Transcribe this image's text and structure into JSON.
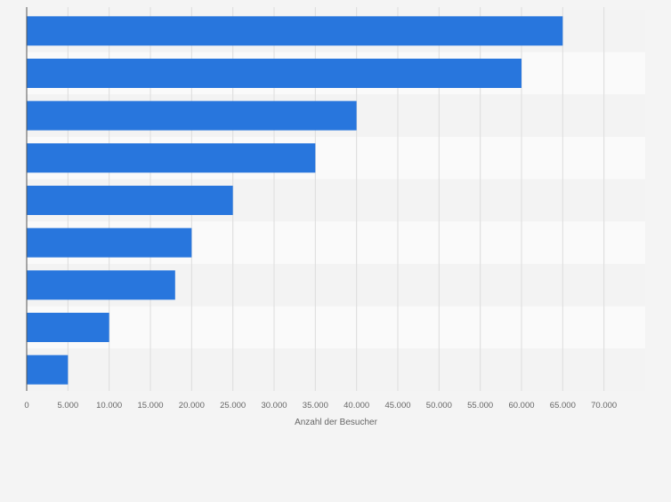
{
  "chart_data": {
    "type": "bar",
    "orientation": "horizontal",
    "categories": [
      "",
      "",
      "",
      "",
      "",
      "",
      "",
      "",
      ""
    ],
    "values": [
      65000,
      60000,
      40000,
      35000,
      25000,
      20000,
      18000,
      10000,
      5000
    ],
    "title": "",
    "xlabel": "Anzahl der Besucher",
    "ylabel": "",
    "xlim": [
      0,
      75000
    ],
    "ticks": [
      0,
      5000,
      10000,
      15000,
      20000,
      25000,
      30000,
      35000,
      40000,
      45000,
      50000,
      55000,
      60000,
      65000,
      70000
    ],
    "tick_labels": [
      "0",
      "5.000",
      "10.000",
      "15.000",
      "20.000",
      "25.000",
      "30.000",
      "35.000",
      "40.000",
      "45.000",
      "50.000",
      "55.000",
      "60.000",
      "65.000",
      "70.000"
    ],
    "grid": true,
    "bar_color": "#2876dd",
    "band_colors": [
      "#f3f3f3",
      "#fafafa"
    ],
    "grid_color": "#dcdcdc",
    "tick_label_color": "#666666"
  }
}
